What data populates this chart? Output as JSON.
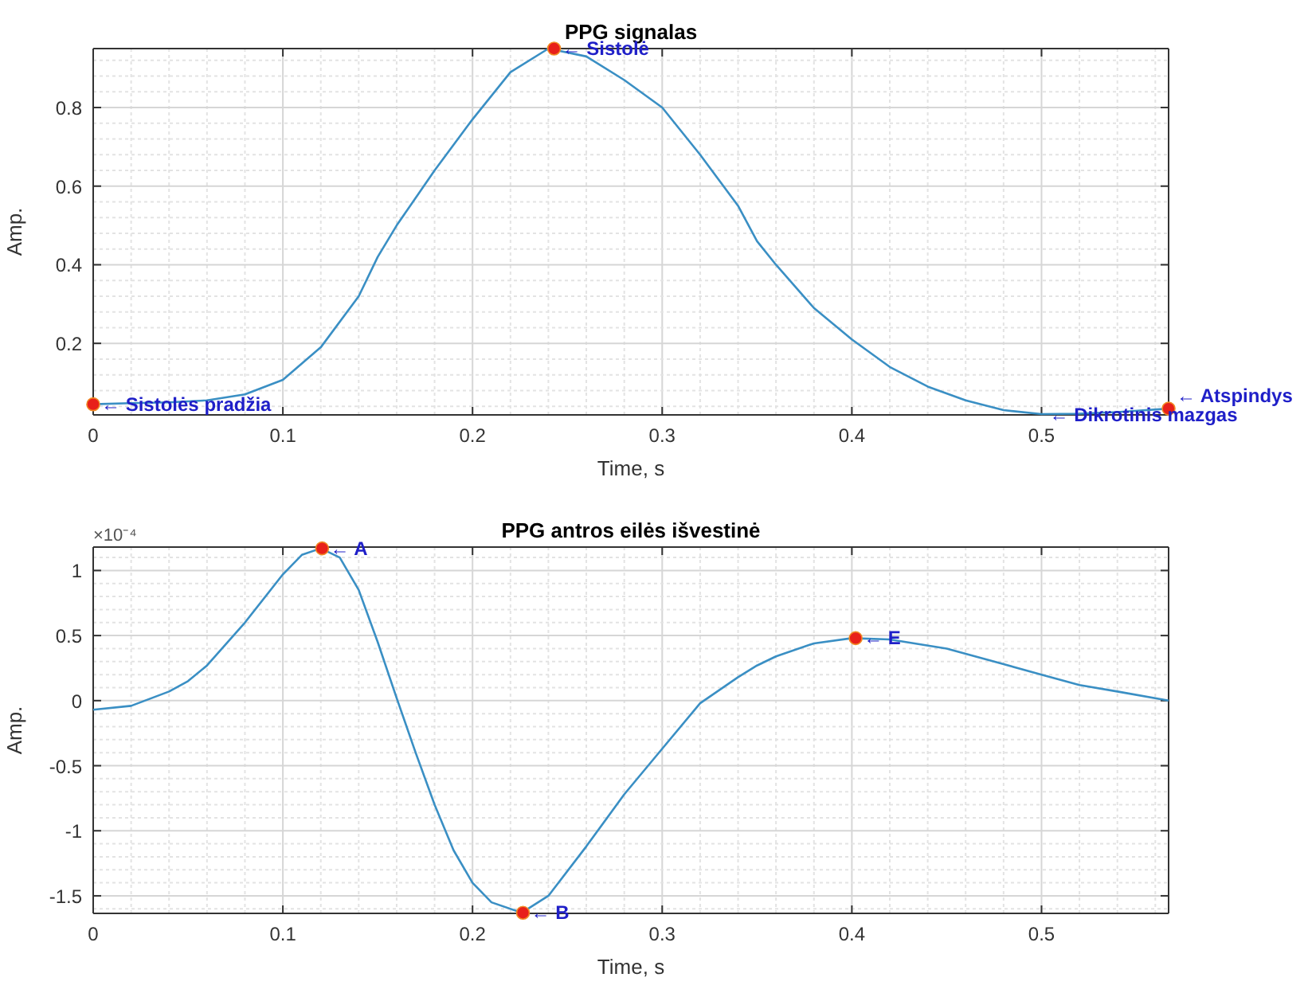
{
  "chart_data": [
    {
      "type": "line",
      "title": "PPG signalas",
      "xlabel": "Time, s",
      "ylabel": "Amp.",
      "xlim": [
        0,
        0.567
      ],
      "ylim": [
        0.018,
        0.95
      ],
      "xticks": [
        0,
        0.1,
        0.2,
        0.3,
        0.4,
        0.5
      ],
      "yticks": [
        0.2,
        0.4,
        0.6,
        0.8
      ],
      "grid": true,
      "series": [
        {
          "type": "line",
          "color": "#3a8fc4",
          "x": [
            0,
            0.02,
            0.04,
            0.06,
            0.08,
            0.1,
            0.12,
            0.14,
            0.15,
            0.16,
            0.18,
            0.2,
            0.22,
            0.24,
            0.26,
            0.28,
            0.3,
            0.32,
            0.34,
            0.35,
            0.36,
            0.38,
            0.4,
            0.42,
            0.44,
            0.46,
            0.48,
            0.5,
            0.52,
            0.54,
            0.567
          ],
          "values": [
            0.045,
            0.048,
            0.05,
            0.055,
            0.07,
            0.107,
            0.19,
            0.32,
            0.42,
            0.5,
            0.64,
            0.77,
            0.89,
            0.95,
            0.93,
            0.87,
            0.8,
            0.68,
            0.55,
            0.46,
            0.4,
            0.29,
            0.21,
            0.14,
            0.09,
            0.055,
            0.03,
            0.02,
            0.021,
            0.025,
            0.034
          ]
        },
        {
          "type": "scatter",
          "color": "#e8201a",
          "marker": "circle",
          "x": [
            0,
            0.243,
            0.567
          ],
          "values": [
            0.045,
            0.95,
            0.034
          ]
        }
      ],
      "annotations": [
        {
          "text": "← Sistolės pradžia",
          "x": 0,
          "y": 0.045
        },
        {
          "text": "← Sistolė",
          "x": 0.243,
          "y": 0.95
        },
        {
          "text": "← Dikrotinis mazgas",
          "x": 0.5,
          "y": 0.018
        },
        {
          "text": "← Atspindys",
          "x": 0.567,
          "y": 0.034
        }
      ]
    },
    {
      "type": "line",
      "title": "PPG antros eilės išvestinė",
      "xlabel": "Time, s",
      "ylabel": "Amp.",
      "xlim": [
        0,
        0.567
      ],
      "ylim": [
        -1.635,
        1.18
      ],
      "xticks": [
        0,
        0.1,
        0.2,
        0.3,
        0.4,
        0.5
      ],
      "yticks": [
        -1.5,
        -1,
        -0.5,
        0,
        0.5,
        1
      ],
      "grid": true,
      "series": [
        {
          "type": "line",
          "color": "#3a8fc4",
          "x": [
            0,
            0.02,
            0.04,
            0.05,
            0.06,
            0.08,
            0.1,
            0.11,
            0.12,
            0.13,
            0.14,
            0.15,
            0.16,
            0.17,
            0.18,
            0.19,
            0.2,
            0.21,
            0.226,
            0.24,
            0.26,
            0.28,
            0.3,
            0.32,
            0.34,
            0.35,
            0.36,
            0.38,
            0.4,
            0.42,
            0.45,
            0.48,
            0.5,
            0.52,
            0.54,
            0.567
          ],
          "values": [
            -0.07,
            -0.04,
            0.07,
            0.15,
            0.27,
            0.6,
            0.97,
            1.12,
            1.17,
            1.1,
            0.85,
            0.45,
            0.02,
            -0.4,
            -0.8,
            -1.15,
            -1.4,
            -1.55,
            -1.63,
            -1.5,
            -1.12,
            -0.72,
            -0.37,
            -0.02,
            0.18,
            0.27,
            0.34,
            0.44,
            0.48,
            0.47,
            0.4,
            0.28,
            0.2,
            0.12,
            0.07,
            0.0
          ]
        },
        {
          "type": "scatter",
          "color": "#e8201a",
          "marker": "circle",
          "x": [
            0.1207,
            0.2266,
            0.402
          ],
          "values": [
            1.17,
            -1.63,
            0.48
          ]
        }
      ],
      "annotations": [
        "×10⁻⁴",
        {
          "text": "← A",
          "x": 0.1207,
          "y": 1.17
        },
        {
          "text": "← B",
          "x": 0.2266,
          "y": -1.63
        },
        {
          "text": "← E",
          "x": 0.402,
          "y": 0.48
        }
      ]
    }
  ]
}
